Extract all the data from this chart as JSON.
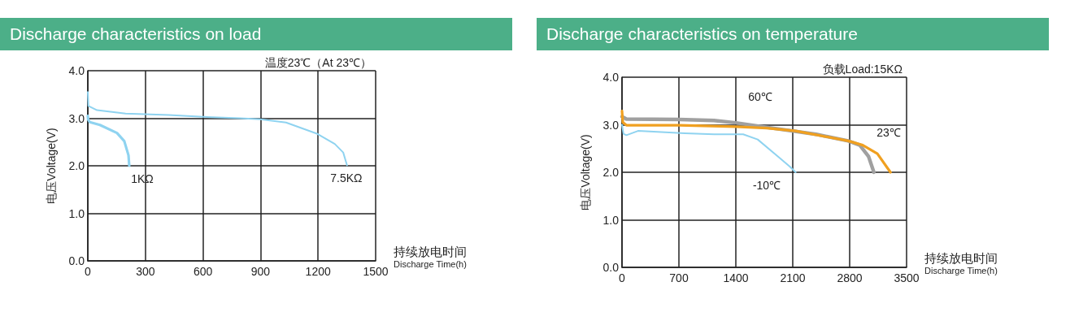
{
  "chart_data": [
    {
      "type": "line",
      "title": "Discharge characteristics on load",
      "subtitle": "温度23℃（At 23℃）",
      "xlabel": "持续放电时间\nDischarge Time(h)",
      "ylabel": "电压Voltage(V)",
      "xlim": [
        0,
        1500
      ],
      "xticks": [
        0,
        300,
        600,
        900,
        1200,
        1500
      ],
      "ylim": [
        0,
        4
      ],
      "yticks": [
        {
          "value": 0,
          "label": "0.0"
        },
        {
          "value": 1,
          "label": "1.0"
        },
        {
          "value": 2,
          "label": "2.0"
        },
        {
          "value": 3,
          "label": "3.0"
        },
        {
          "value": 4,
          "label": "4.0"
        }
      ],
      "grid": true,
      "marker": "none",
      "line_style": "solid",
      "series": [
        {
          "name": "1KΩ",
          "color": "#8fd3f0",
          "x": [
            0,
            2,
            10,
            63,
            152,
            190,
            212,
            216
          ],
          "values": [
            3.05,
            2.97,
            2.92,
            2.86,
            2.69,
            2.52,
            2.22,
            2.0
          ]
        },
        {
          "name": "7.5KΩ",
          "color": "#8fd3f0",
          "x": [
            0,
            3,
            48,
            197,
            421,
            600,
            794,
            899,
            1033,
            1197,
            1287,
            1331,
            1351
          ],
          "values": [
            3.55,
            3.26,
            3.17,
            3.1,
            3.07,
            3.03,
            3.0,
            2.98,
            2.91,
            2.67,
            2.46,
            2.28,
            2.01
          ]
        }
      ]
    },
    {
      "type": "line",
      "title": "Discharge characteristics on temperature",
      "subtitle": "负载Load:15KΩ",
      "xlabel": "持续放电时间\nDischarge Time(h)",
      "ylabel": "电压Voltage(V)",
      "xlim": [
        0,
        3500
      ],
      "xticks": [
        0,
        700,
        1400,
        2100,
        2800,
        3500
      ],
      "ylim": [
        0,
        4
      ],
      "yticks": [
        {
          "value": 0,
          "label": "0.0"
        },
        {
          "value": 1,
          "label": "1.0"
        },
        {
          "value": 2,
          "label": "2.0"
        },
        {
          "value": 3,
          "label": "3.0"
        },
        {
          "value": 4,
          "label": "4.0"
        }
      ],
      "grid": true,
      "marker": "none",
      "line_style": "solid",
      "series": [
        {
          "name": "60℃",
          "color": "#a0a0a0",
          "x": [
            0,
            54,
            700,
            1131,
            1400,
            1849,
            2387,
            2782,
            2925,
            3033,
            3098
          ],
          "values": [
            3.17,
            3.12,
            3.11,
            3.09,
            3.04,
            2.93,
            2.8,
            2.66,
            2.57,
            2.33,
            2.0
          ]
        },
        {
          "name": "23℃",
          "color": "#f0a020",
          "x": [
            0,
            10,
            54,
            700,
            1400,
            1777,
            2136,
            2782,
            2961,
            3141,
            3302
          ],
          "values": [
            3.29,
            3.05,
            2.99,
            2.99,
            2.96,
            2.93,
            2.87,
            2.66,
            2.57,
            2.39,
            2.0
          ]
        },
        {
          "name": "-10℃",
          "color": "#8fd3f0",
          "x": [
            0,
            18,
            54,
            197,
            772,
            1131,
            1490,
            1669,
            1920,
            2064,
            2136
          ],
          "values": [
            3.0,
            2.81,
            2.78,
            2.87,
            2.82,
            2.8,
            2.8,
            2.69,
            2.33,
            2.12,
            2.0
          ]
        }
      ]
    }
  ]
}
